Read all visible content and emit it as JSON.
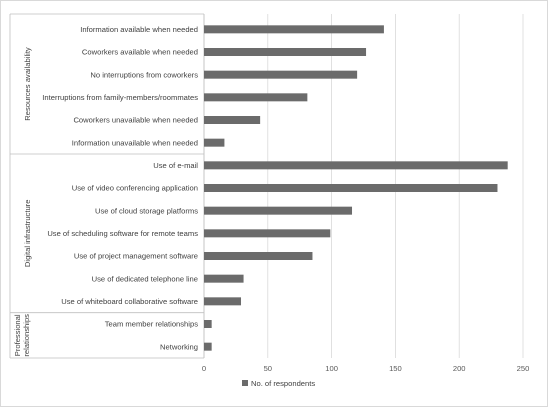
{
  "chart_data": {
    "type": "bar",
    "orientation": "horizontal",
    "groups": [
      {
        "label": "Resources availability",
        "categories": [
          "Information available when needed",
          "Coworkers available when needed",
          "No interruptions from coworkers",
          "Interruptions from family-members/roommates",
          "Coworkers unavailable when needed",
          "Information unavailable when needed"
        ],
        "values": [
          141,
          127,
          120,
          81,
          44,
          16
        ]
      },
      {
        "label": "Digital infrastructure",
        "categories": [
          "Use of e-mail",
          "Use of video conferencing application",
          "Use of cloud storage platforms",
          "Use of scheduling software for remote teams",
          "Use of project management software",
          "Use of dedicated telephone line",
          "Use of whiteboard collaborative software"
        ],
        "values": [
          238,
          230,
          116,
          99,
          85,
          31,
          29
        ]
      },
      {
        "label": "Professional relationships",
        "categories": [
          "Team member relationships",
          "Networking"
        ],
        "values": [
          6,
          6
        ]
      }
    ],
    "series": [
      {
        "name": "No. of respondents"
      }
    ],
    "xlim": [
      0,
      250
    ],
    "xticks": [
      "0",
      "50",
      "100",
      "150",
      "200",
      "250"
    ],
    "grid": true,
    "legend_position": "bottom",
    "bar_color": "#6b6b6b"
  }
}
